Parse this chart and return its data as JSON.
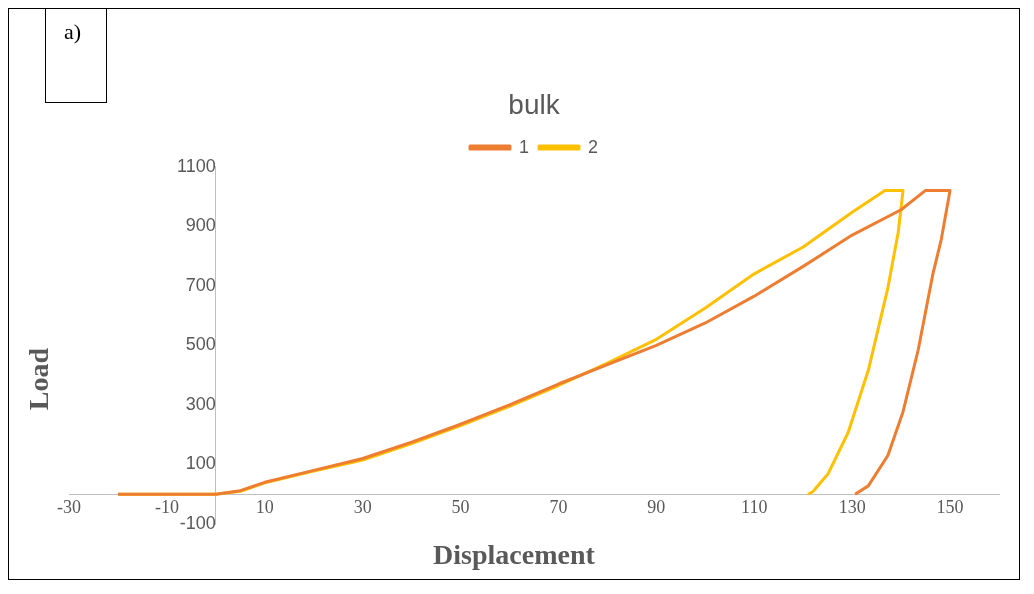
{
  "chart_data": {
    "type": "line",
    "title": "bulk",
    "xlabel": "Displacement",
    "ylabel": "Load",
    "annotations": [
      "a)"
    ],
    "xlim": [
      -30,
      160
    ],
    "xticks": [
      -30,
      -10,
      10,
      30,
      50,
      70,
      90,
      110,
      130,
      150
    ],
    "ylim": [
      -100,
      1100
    ],
    "yticks": [
      -100,
      100,
      300,
      500,
      700,
      900,
      1100
    ],
    "grid": false,
    "legend": "top",
    "marker": "none",
    "line_style": "solid",
    "series": [
      {
        "name": "1",
        "color": "#ed7d31",
        "x": [
          -20,
          0,
          5,
          10,
          20,
          30,
          40,
          50,
          60,
          70,
          80,
          90,
          100,
          110,
          120,
          130,
          140,
          145,
          150,
          148.2,
          146.5,
          143.5,
          140.4,
          137.3,
          133.3,
          130.6
        ],
        "values": [
          0,
          0,
          12,
          40,
          80,
          120,
          175,
          235,
          300,
          370,
          435,
          500,
          575,
          665,
          765,
          870,
          955,
          1020,
          1020,
          855,
          740,
          485,
          277,
          130,
          28,
          0
        ]
      },
      {
        "name": "2",
        "color": "#ffc000",
        "x": [
          -20,
          0,
          5,
          10,
          20,
          30,
          40,
          50,
          60,
          70,
          80,
          90,
          100,
          110,
          120,
          130,
          136.7,
          140.4,
          139.4,
          137.3,
          133.3,
          129.2,
          125.1,
          122,
          121
        ],
        "values": [
          0,
          0,
          10,
          38,
          78,
          115,
          170,
          230,
          295,
          365,
          440,
          520,
          625,
          740,
          830,
          947,
          1020,
          1020,
          878,
          693,
          416,
          208,
          69,
          9,
          0
        ]
      }
    ]
  }
}
